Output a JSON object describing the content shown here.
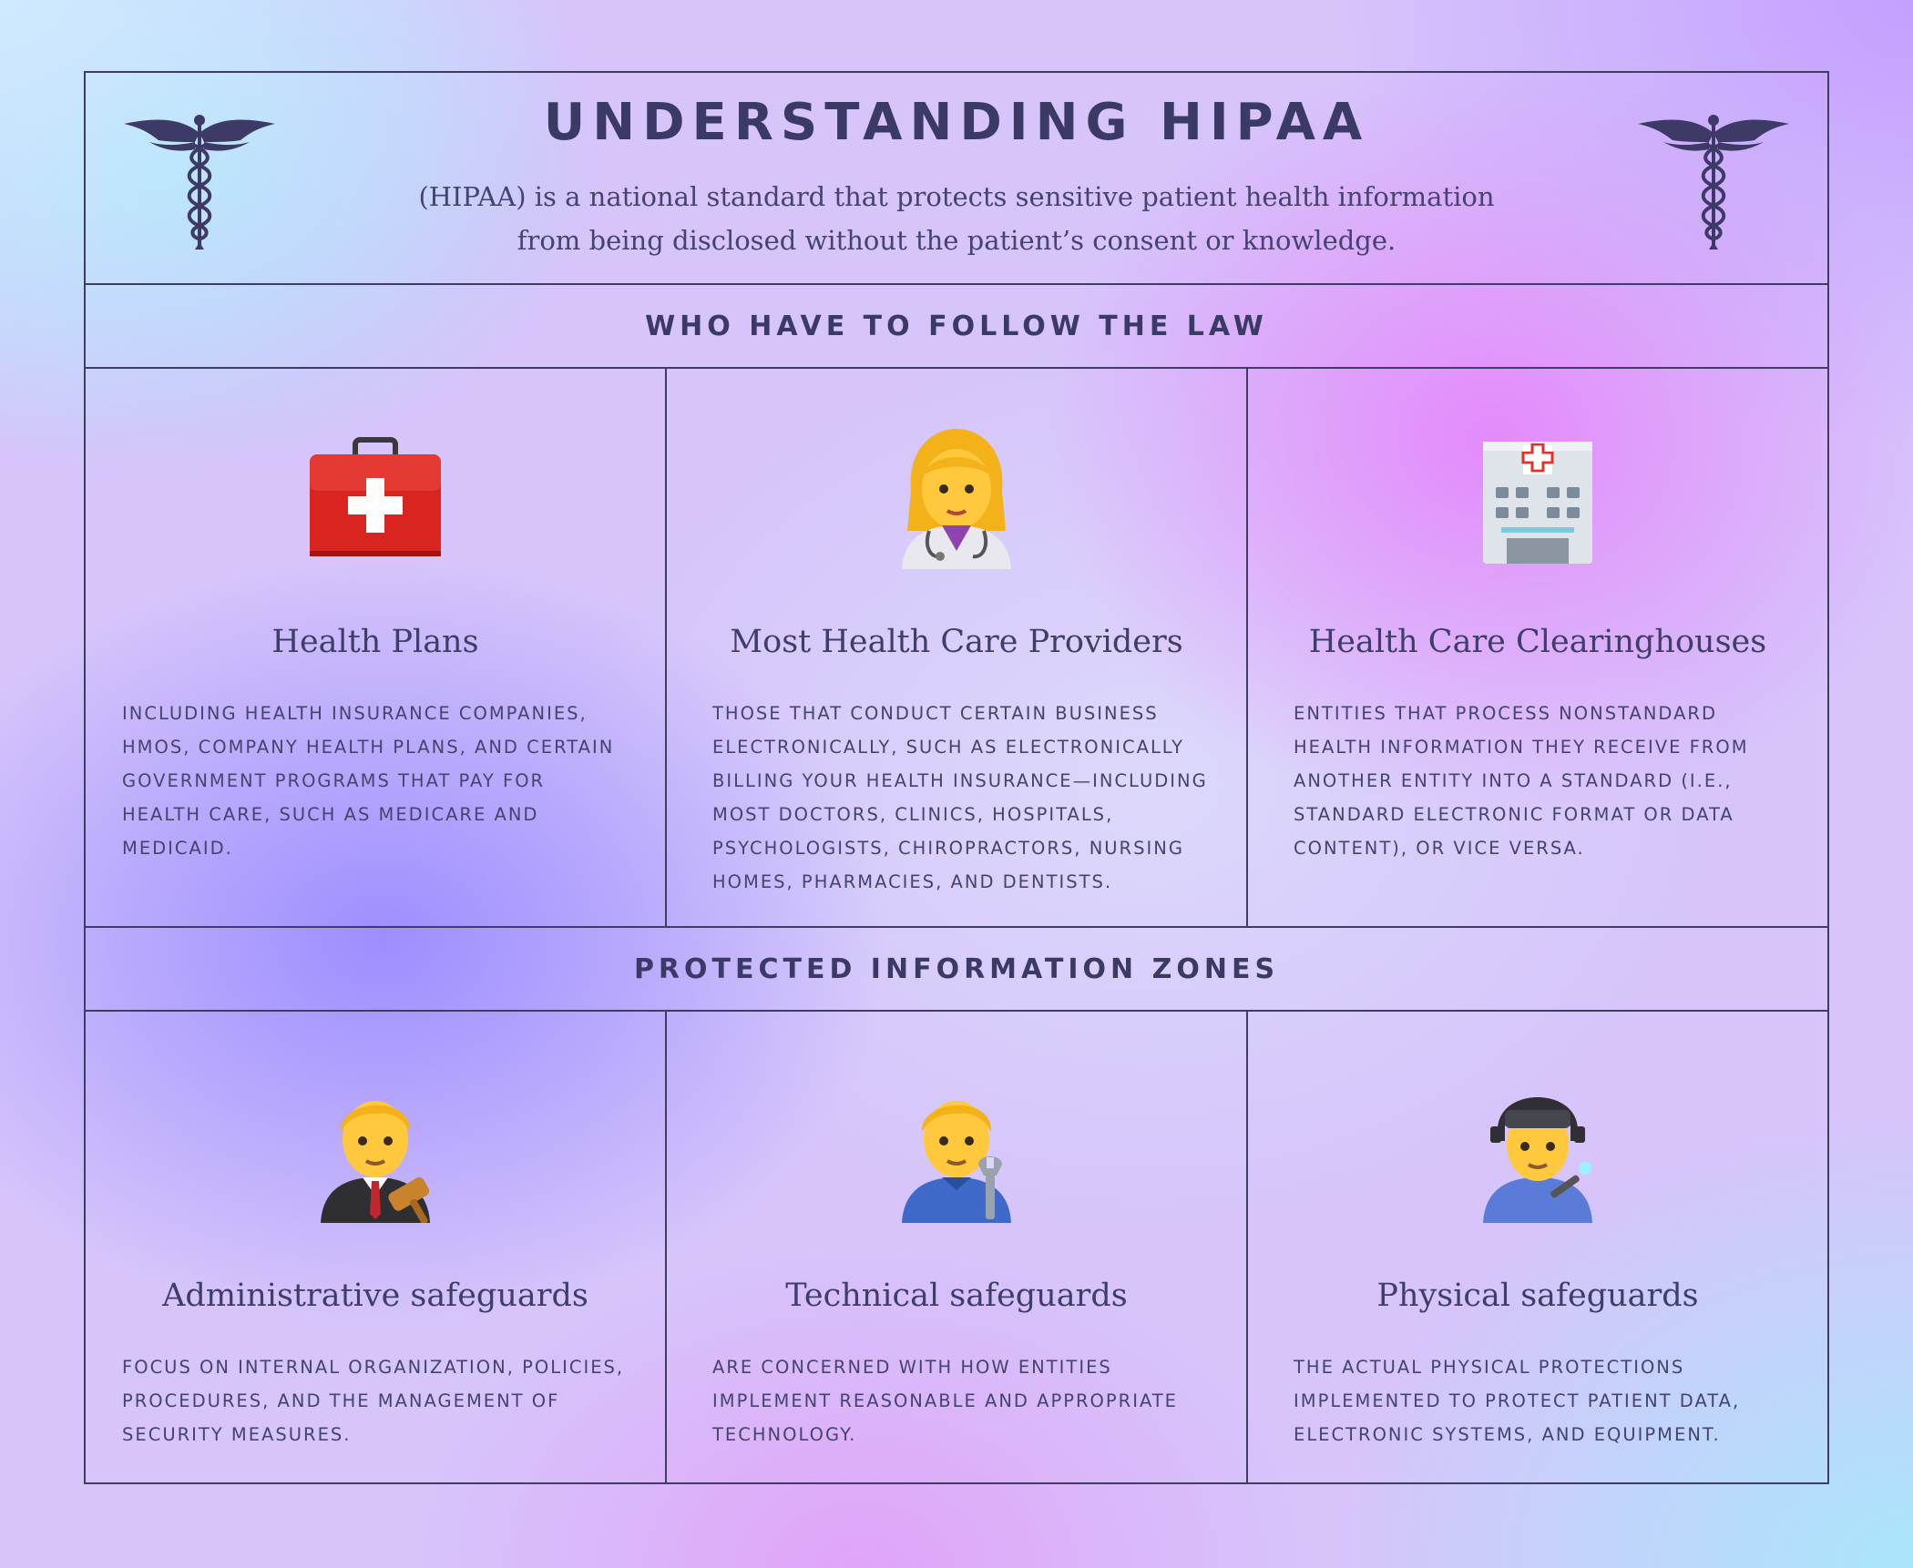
{
  "header": {
    "title": "UNDERSTANDING HIPAA",
    "subtitle_line1": "(HIPAA) is a national standard that protects sensitive patient health information",
    "subtitle_line2": "from being disclosed without the patient’s consent or knowledge.",
    "left_icon": "caduceus-icon",
    "right_icon": "caduceus-icon"
  },
  "who_section": {
    "heading": "WHO HAVE TO FOLLOW THE LAW",
    "cards": [
      {
        "icon": "medical-kit-icon",
        "title": "Health Plans",
        "text": "Including health insurance companies, HMOs, company health plans, and certain government programs that pay for health care, such as Medicare and Medicaid."
      },
      {
        "icon": "woman-health-worker-icon",
        "title": "Most Health Care Providers",
        "text": "Those that conduct certain business electronically, such as electronically billing your health insurance—including most doctors, clinics, hospitals, psychologists, chiropractors, nursing homes, pharmacies, and dentists."
      },
      {
        "icon": "hospital-icon",
        "title": "Health Care Clearinghouses",
        "text": "Entities that process nonstandard health information they receive from another entity into a standard (i.e., standard electronic format or data content), or vice versa."
      }
    ]
  },
  "zones_section": {
    "heading": "PROTECTED INFORMATION ZONES",
    "cards": [
      {
        "icon": "man-judge-icon",
        "title": "Administrative safeguards",
        "text": "Focus on internal organization, policies, procedures, and the management of security measures."
      },
      {
        "icon": "man-mechanic-icon",
        "title": "Technical safeguards",
        "text": "Are concerned with how entities implement reasonable and appropriate technology."
      },
      {
        "icon": "factory-worker-icon",
        "title": "Physical safeguards",
        "text": "The actual physical protections implemented to protect patient data, electronic systems, and equipment."
      }
    ]
  },
  "colors": {
    "ink": "#3b3a66",
    "border": "#3f3d62",
    "kit_red": "#d9241f",
    "skin": "#ffc83d",
    "hair": "#f3b21a"
  }
}
